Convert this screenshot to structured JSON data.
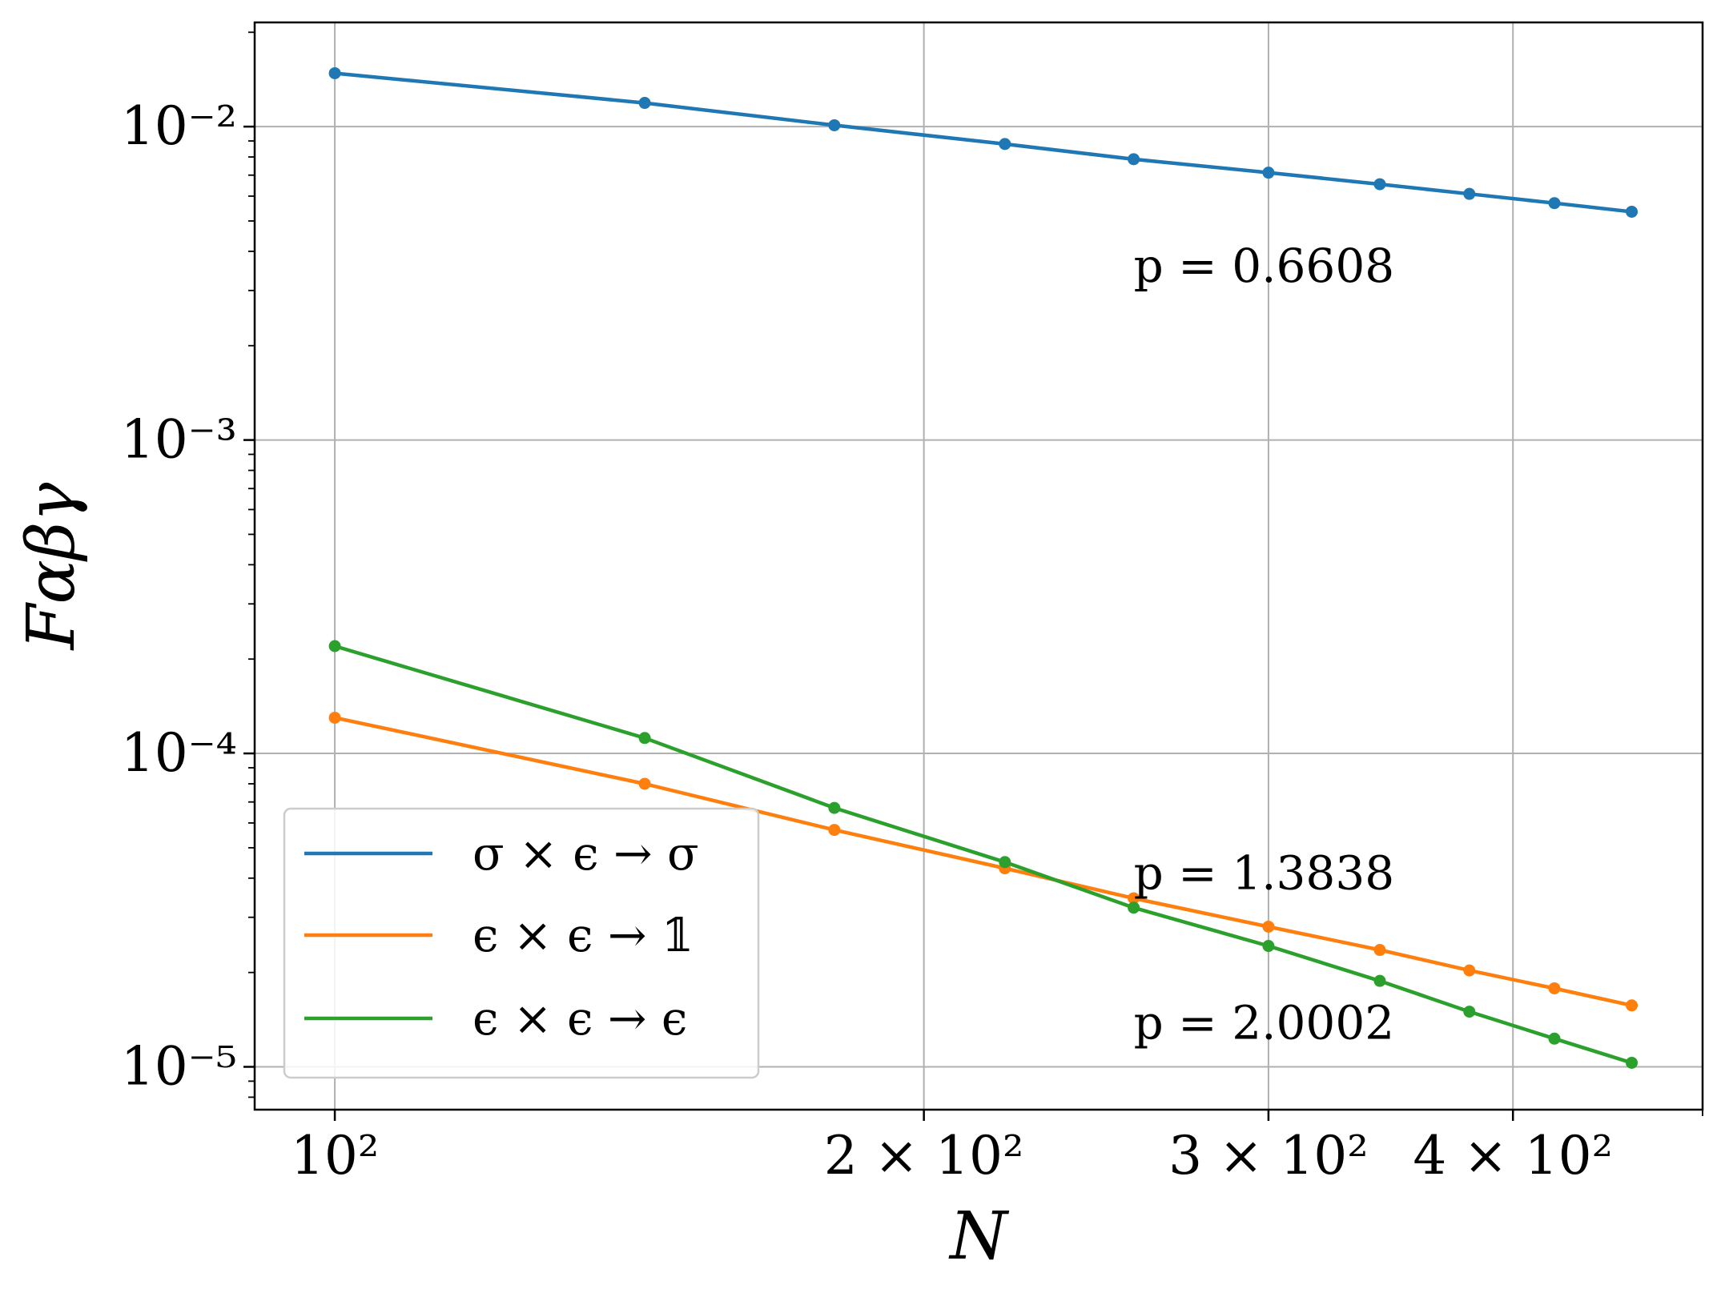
{
  "chart_data": {
    "type": "line",
    "xlabel": "N",
    "ylabel": "Fαβγ",
    "xscale": "log",
    "yscale": "log",
    "xlim": [
      91,
      500
    ],
    "ylim": [
      7.3e-06,
      0.0215
    ],
    "grid": true,
    "legend_position": "lower-left",
    "x_ticks": [
      {
        "value": 100,
        "label": "10²"
      },
      {
        "value": 200,
        "label": "2 × 10²"
      },
      {
        "value": 300,
        "label": "3 × 10²"
      },
      {
        "value": 400,
        "label": "4 × 10²"
      }
    ],
    "y_ticks": [
      {
        "value": 1e-05,
        "label": "10⁻⁵"
      },
      {
        "value": 0.0001,
        "label": "10⁻⁴"
      },
      {
        "value": 0.001,
        "label": "10⁻³"
      },
      {
        "value": 0.01,
        "label": "10⁻²"
      }
    ],
    "x": [
      100,
      144,
      180,
      220,
      256,
      300,
      342,
      380,
      420,
      460
    ],
    "series": [
      {
        "name": "σ × ϵ → σ",
        "color": "#1f77b4",
        "values": [
          0.0148,
          0.0119,
          0.0101,
          0.0088,
          0.00787,
          0.00713,
          0.00655,
          0.0061,
          0.0057,
          0.00535
        ]
      },
      {
        "name": "ϵ × ϵ → 𝟙",
        "color": "#ff7f0e",
        "values": [
          0.00013,
          8e-05,
          5.7e-05,
          4.3e-05,
          3.45e-05,
          2.8e-05,
          2.36e-05,
          2.03e-05,
          1.78e-05,
          1.57e-05
        ]
      },
      {
        "name": "ϵ × ϵ → ϵ",
        "color": "#2ca02c",
        "values": [
          0.00022,
          0.000112,
          6.7e-05,
          4.5e-05,
          3.22e-05,
          2.43e-05,
          1.88e-05,
          1.5e-05,
          1.23e-05,
          1.03e-05
        ]
      }
    ],
    "annotations": [
      {
        "text": "p = 0.6608",
        "x": 256,
        "y": 0.0036
      },
      {
        "text": "p = 1.3838",
        "x": 256,
        "y": 4.15e-05
      },
      {
        "text": "p = 2.0002",
        "x": 256,
        "y": 1.38e-05
      }
    ]
  }
}
